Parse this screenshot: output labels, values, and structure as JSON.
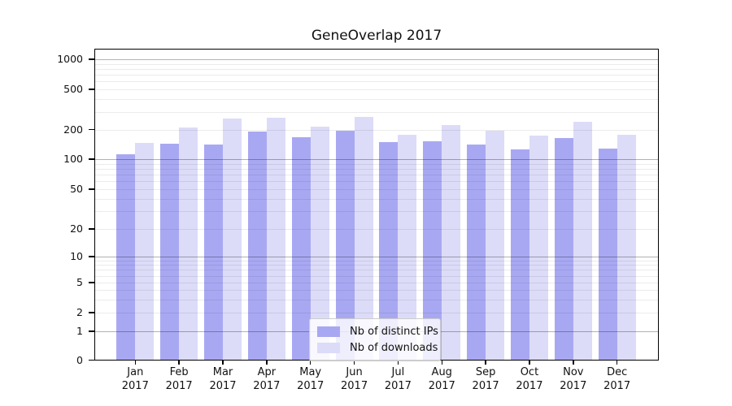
{
  "title": "GeneOverlap 2017",
  "chart_data": {
    "type": "bar",
    "title": "GeneOverlap 2017",
    "months": [
      "Jan",
      "Feb",
      "Mar",
      "Apr",
      "May",
      "Jun",
      "Jul",
      "Aug",
      "Sep",
      "Oct",
      "Nov",
      "Dec"
    ],
    "year": "2017",
    "series": [
      {
        "name": "Nb of distinct IPs",
        "color": "#a8a8f2",
        "values": [
          113,
          144,
          141,
          191,
          167,
          195,
          148,
          152,
          140,
          125,
          163,
          128
        ]
      },
      {
        "name": "Nb of downloads",
        "color": "#dcdcf8",
        "values": [
          146,
          209,
          257,
          263,
          213,
          266,
          176,
          221,
          195,
          175,
          238,
          179
        ]
      }
    ],
    "yscale": "symlog",
    "ytick_labels": [
      0,
      1,
      2,
      5,
      10,
      20,
      50,
      100,
      200,
      500,
      1000
    ],
    "ylim": [
      0,
      1290
    ],
    "grid": true,
    "legend_position": "lower center"
  },
  "colors": {
    "bar_ips": "#a8a8f2",
    "bar_downloads": "#dcdcf8",
    "grid_major": "#b3b3b3",
    "grid_minor": "#ebebeb",
    "axis": "#000000",
    "background": "#ffffff"
  }
}
